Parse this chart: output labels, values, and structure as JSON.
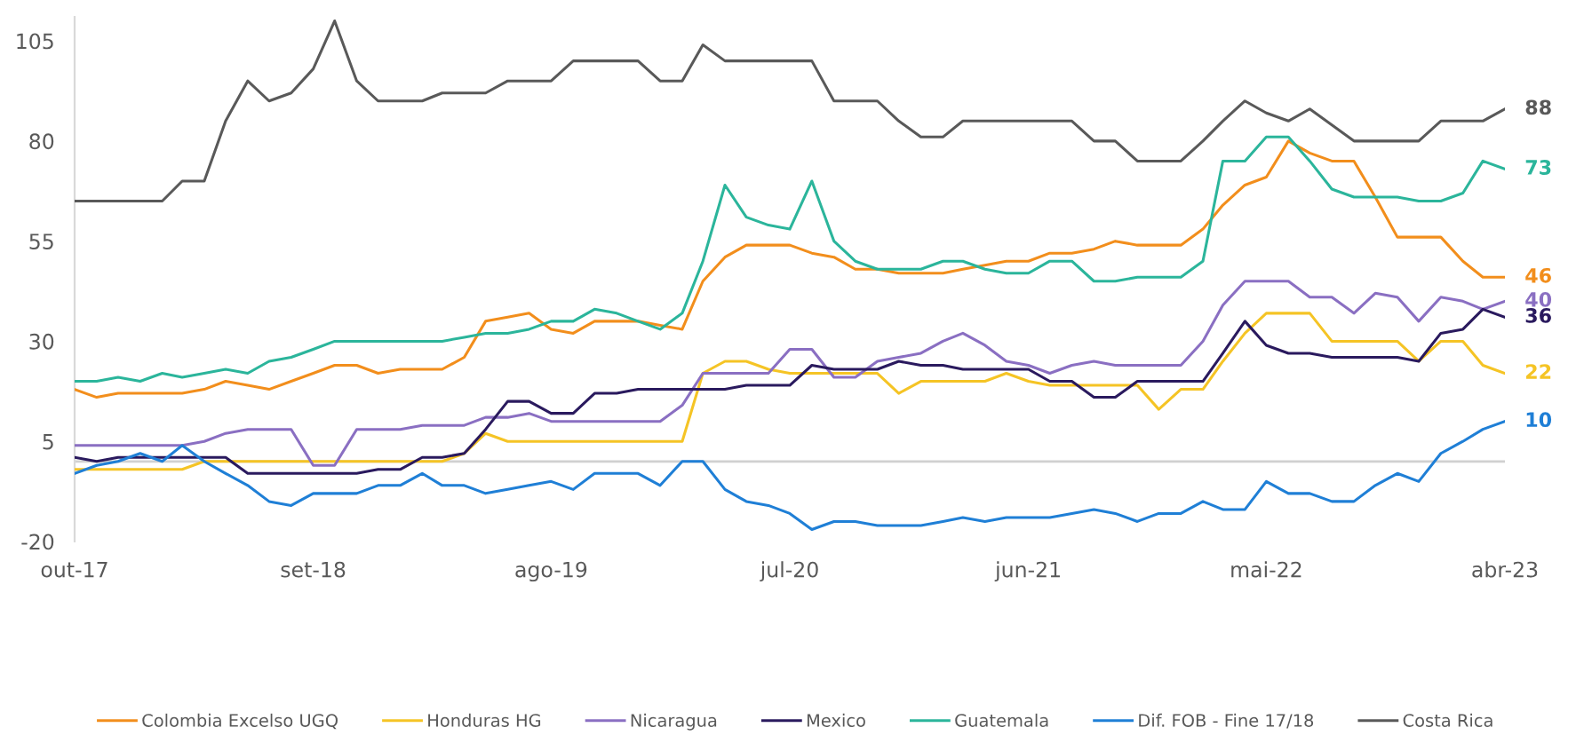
{
  "chart_data": {
    "type": "line",
    "x": [
      "2017-10",
      "2017-11",
      "2017-12",
      "2018-01",
      "2018-02",
      "2018-03",
      "2018-04",
      "2018-05",
      "2018-06",
      "2018-07",
      "2018-08",
      "2018-09",
      "2018-10",
      "2018-11",
      "2018-12",
      "2019-01",
      "2019-02",
      "2019-03",
      "2019-04",
      "2019-05",
      "2019-06",
      "2019-07",
      "2019-08",
      "2019-09",
      "2019-10",
      "2019-11",
      "2019-12",
      "2020-01",
      "2020-02",
      "2020-03",
      "2020-04",
      "2020-05",
      "2020-06",
      "2020-07",
      "2020-08",
      "2020-09",
      "2020-10",
      "2020-11",
      "2020-12",
      "2021-01",
      "2021-02",
      "2021-03",
      "2021-04",
      "2021-05",
      "2021-06",
      "2021-07",
      "2021-08",
      "2021-09",
      "2021-10",
      "2021-11",
      "2021-12",
      "2022-01",
      "2022-02",
      "2022-03",
      "2022-04",
      "2022-05",
      "2022-06",
      "2022-07",
      "2022-08",
      "2022-09",
      "2022-10",
      "2022-11",
      "2022-12",
      "2023-01",
      "2023-02",
      "2023-03",
      "2023-04"
    ],
    "series": [
      {
        "name": "Colombia Excelso UGQ",
        "color": "#f28e1c",
        "values": [
          18,
          16,
          17,
          17,
          17,
          17,
          18,
          20,
          19,
          18,
          20,
          22,
          24,
          24,
          22,
          23,
          23,
          23,
          26,
          35,
          36,
          37,
          33,
          32,
          35,
          35,
          35,
          34,
          33,
          45,
          51,
          54,
          54,
          54,
          52,
          51,
          48,
          48,
          47,
          47,
          47,
          48,
          49,
          50,
          50,
          52,
          52,
          53,
          55,
          54,
          54,
          54,
          58,
          64,
          69,
          71,
          80,
          77,
          75,
          75,
          66,
          56,
          56,
          56,
          50,
          46,
          46
        ],
        "value_labels": [
          null,
          null,
          null,
          null,
          null,
          null,
          null,
          null,
          null,
          null,
          null,
          null,
          null,
          null,
          null,
          null,
          null,
          null,
          null,
          null,
          null,
          null,
          null,
          null,
          null,
          null,
          null,
          null,
          null,
          null,
          null,
          null,
          null,
          null,
          null,
          null,
          null,
          null,
          null,
          null,
          null,
          null,
          null,
          null,
          null,
          null,
          null,
          null,
          null,
          null,
          null,
          null,
          null,
          null,
          null,
          null,
          null,
          null,
          null,
          null,
          null,
          null,
          null,
          null,
          null,
          null,
          "46"
        ]
      },
      {
        "name": "Honduras HG",
        "color": "#f5c425",
        "values": [
          -2,
          -2,
          -2,
          -2,
          -2,
          -2,
          0,
          0,
          0,
          0,
          0,
          0,
          0,
          0,
          0,
          0,
          0,
          0,
          2,
          7,
          5,
          5,
          5,
          5,
          5,
          5,
          5,
          5,
          5,
          22,
          25,
          25,
          23,
          22,
          22,
          22,
          22,
          22,
          17,
          20,
          20,
          20,
          20,
          22,
          20,
          19,
          19,
          19,
          19,
          19,
          13,
          18,
          18,
          25,
          32,
          37,
          37,
          37,
          30,
          30,
          30,
          30,
          25,
          30,
          30,
          24,
          22
        ],
        "value_labels": [
          null,
          null,
          null,
          null,
          null,
          null,
          null,
          null,
          null,
          null,
          null,
          null,
          null,
          null,
          null,
          null,
          null,
          null,
          null,
          null,
          null,
          null,
          null,
          null,
          null,
          null,
          null,
          null,
          null,
          null,
          null,
          null,
          null,
          null,
          null,
          null,
          null,
          null,
          null,
          null,
          null,
          null,
          null,
          null,
          null,
          null,
          null,
          null,
          null,
          null,
          null,
          null,
          null,
          null,
          null,
          null,
          null,
          null,
          null,
          null,
          null,
          null,
          null,
          null,
          null,
          null,
          "22"
        ]
      },
      {
        "name": "Nicaragua",
        "color": "#8a6fc2",
        "values": [
          4,
          4,
          4,
          4,
          4,
          4,
          5,
          7,
          8,
          8,
          8,
          -1,
          -1,
          8,
          8,
          8,
          9,
          9,
          9,
          11,
          11,
          12,
          10,
          10,
          10,
          10,
          10,
          10,
          14,
          22,
          22,
          22,
          22,
          28,
          28,
          21,
          21,
          25,
          26,
          27,
          30,
          32,
          29,
          25,
          24,
          22,
          24,
          25,
          24,
          24,
          24,
          24,
          30,
          39,
          45,
          45,
          45,
          41,
          41,
          37,
          42,
          41,
          35,
          41,
          40,
          38,
          40
        ],
        "value_labels": [
          null,
          null,
          null,
          null,
          null,
          null,
          null,
          null,
          null,
          null,
          null,
          null,
          null,
          null,
          null,
          null,
          null,
          null,
          null,
          null,
          null,
          null,
          null,
          null,
          null,
          null,
          null,
          null,
          null,
          null,
          null,
          null,
          null,
          null,
          null,
          null,
          null,
          null,
          null,
          null,
          null,
          null,
          null,
          null,
          null,
          null,
          null,
          null,
          null,
          null,
          null,
          null,
          null,
          null,
          null,
          null,
          null,
          null,
          null,
          null,
          null,
          null,
          null,
          null,
          null,
          null,
          "40"
        ]
      },
      {
        "name": "Mexico",
        "color": "#2a1a5e",
        "values": [
          1,
          0,
          1,
          1,
          1,
          1,
          1,
          1,
          -3,
          -3,
          -3,
          -3,
          -3,
          -3,
          -2,
          -2,
          1,
          1,
          2,
          8,
          15,
          15,
          12,
          12,
          17,
          17,
          18,
          18,
          18,
          18,
          18,
          19,
          19,
          19,
          24,
          23,
          23,
          23,
          25,
          24,
          24,
          23,
          23,
          23,
          23,
          20,
          20,
          16,
          16,
          20,
          20,
          20,
          20,
          27,
          35,
          29,
          27,
          27,
          26,
          26,
          26,
          26,
          25,
          32,
          33,
          38,
          36
        ],
        "value_labels": [
          null,
          null,
          null,
          null,
          null,
          null,
          null,
          null,
          null,
          null,
          null,
          null,
          null,
          null,
          null,
          null,
          null,
          null,
          null,
          null,
          null,
          null,
          null,
          null,
          null,
          null,
          null,
          null,
          null,
          null,
          null,
          null,
          null,
          null,
          null,
          null,
          null,
          null,
          null,
          null,
          null,
          null,
          null,
          null,
          null,
          null,
          null,
          null,
          null,
          null,
          null,
          null,
          null,
          null,
          null,
          null,
          null,
          null,
          null,
          null,
          null,
          null,
          null,
          null,
          null,
          null,
          "36"
        ]
      },
      {
        "name": "Guatemala",
        "color": "#2bb59b",
        "values": [
          20,
          20,
          21,
          20,
          22,
          21,
          22,
          23,
          22,
          25,
          26,
          28,
          30,
          30,
          30,
          30,
          30,
          30,
          31,
          32,
          32,
          33,
          35,
          35,
          38,
          37,
          35,
          33,
          37,
          50,
          69,
          61,
          59,
          58,
          70,
          55,
          50,
          48,
          48,
          48,
          50,
          50,
          48,
          47,
          47,
          50,
          50,
          45,
          45,
          46,
          46,
          46,
          50,
          75,
          75,
          81,
          81,
          75,
          68,
          66,
          66,
          66,
          65,
          65,
          67,
          75,
          73
        ],
        "value_labels": [
          null,
          null,
          null,
          null,
          null,
          null,
          null,
          null,
          null,
          null,
          null,
          null,
          null,
          null,
          null,
          null,
          null,
          null,
          null,
          null,
          null,
          null,
          null,
          null,
          null,
          null,
          null,
          null,
          null,
          null,
          null,
          null,
          null,
          null,
          null,
          null,
          null,
          null,
          null,
          null,
          null,
          null,
          null,
          null,
          null,
          null,
          null,
          null,
          null,
          null,
          null,
          null,
          null,
          null,
          null,
          null,
          null,
          null,
          null,
          null,
          null,
          null,
          null,
          null,
          null,
          null,
          "73"
        ]
      },
      {
        "name": "Dif. FOB - Fine 17/18",
        "color": "#1f7fd6",
        "values": [
          -3,
          -1,
          0,
          2,
          0,
          4,
          0,
          -3,
          -6,
          -10,
          -11,
          -8,
          -8,
          -8,
          -6,
          -6,
          -3,
          -6,
          -6,
          -8,
          -7,
          -6,
          -5,
          -7,
          -3,
          -3,
          -3,
          -6,
          0,
          0,
          -7,
          -10,
          -11,
          -13,
          -17,
          -15,
          -15,
          -16,
          -16,
          -16,
          -15,
          -14,
          -15,
          -14,
          -14,
          -14,
          -13,
          -12,
          -13,
          -15,
          -13,
          -13,
          -10,
          -12,
          -12,
          -5,
          -8,
          -8,
          -10,
          -10,
          -6,
          -3,
          -5,
          2,
          5,
          8,
          10
        ],
        "value_labels": [
          null,
          null,
          null,
          null,
          null,
          null,
          null,
          null,
          null,
          null,
          null,
          null,
          null,
          null,
          null,
          null,
          null,
          null,
          null,
          null,
          null,
          null,
          null,
          null,
          null,
          null,
          null,
          null,
          null,
          null,
          null,
          null,
          null,
          null,
          null,
          null,
          null,
          null,
          null,
          null,
          null,
          null,
          null,
          null,
          null,
          null,
          null,
          null,
          null,
          null,
          null,
          null,
          null,
          null,
          null,
          null,
          null,
          null,
          null,
          null,
          null,
          null,
          null,
          null,
          null,
          null,
          "10"
        ]
      },
      {
        "name": "Costa Rica",
        "color": "#595959",
        "values": [
          65,
          65,
          65,
          65,
          65,
          70,
          70,
          85,
          95,
          90,
          92,
          98,
          110,
          95,
          90,
          90,
          90,
          92,
          92,
          92,
          95,
          95,
          95,
          100,
          100,
          100,
          100,
          95,
          95,
          104,
          100,
          100,
          100,
          100,
          100,
          90,
          90,
          90,
          85,
          81,
          81,
          85,
          85,
          85,
          85,
          85,
          85,
          80,
          80,
          75,
          75,
          75,
          80,
          85,
          90,
          87,
          85,
          88,
          84,
          80,
          80,
          80,
          80,
          85,
          85,
          85,
          88
        ],
        "value_labels": [
          null,
          null,
          null,
          null,
          null,
          null,
          null,
          null,
          null,
          null,
          null,
          null,
          null,
          null,
          null,
          null,
          null,
          null,
          null,
          null,
          null,
          null,
          null,
          null,
          null,
          null,
          null,
          null,
          null,
          null,
          null,
          null,
          null,
          null,
          null,
          null,
          null,
          null,
          null,
          null,
          null,
          null,
          null,
          null,
          null,
          null,
          null,
          null,
          null,
          null,
          null,
          null,
          null,
          null,
          null,
          null,
          null,
          null,
          null,
          null,
          null,
          null,
          null,
          null,
          null,
          null,
          "88"
        ]
      }
    ],
    "xlim": [
      "2017-10",
      "2023-04"
    ],
    "xticks": [
      {
        "value": "2017-10",
        "label": "out-17"
      },
      {
        "value": "2018-09",
        "label": "set-18"
      },
      {
        "value": "2019-08",
        "label": "ago-19"
      },
      {
        "value": "2020-07",
        "label": "jul-20"
      },
      {
        "value": "2021-06",
        "label": "jun-21"
      },
      {
        "value": "2022-05",
        "label": "mai-22"
      },
      {
        "value": "2023-04",
        "label": "abr-23"
      }
    ],
    "ylim": [
      -20,
      111
    ],
    "yticks": [
      -20,
      5,
      30,
      55,
      80,
      105
    ],
    "ref_lines": [
      {
        "axis": "y",
        "value": 0,
        "color": "#d0d0d0"
      }
    ],
    "grid": false,
    "legend": "bottom",
    "marker": "none",
    "line_style": "solid"
  }
}
